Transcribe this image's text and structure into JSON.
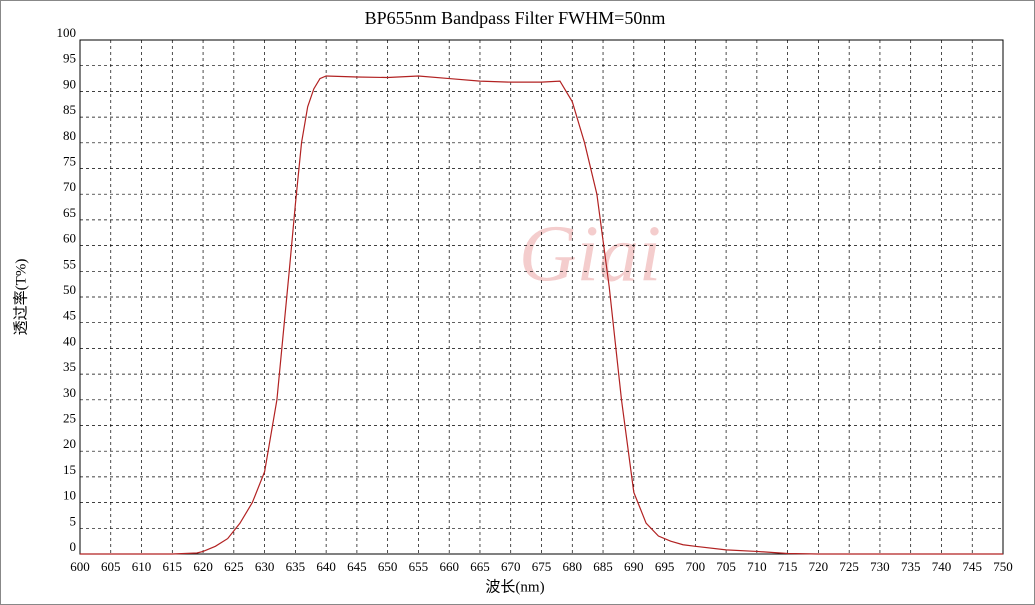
{
  "chart_data": {
    "type": "line",
    "title": "BP655nm Bandpass Filter FWHM=50nm",
    "x_label": "波长(nm)",
    "y_label": "透过率(T%)",
    "watermark": "Giai",
    "x": [
      600,
      615,
      619,
      620,
      622,
      624,
      626,
      628,
      630,
      632,
      634,
      635,
      636,
      637,
      638,
      639,
      640,
      645,
      650,
      655,
      660,
      665,
      670,
      675,
      678,
      680,
      682,
      684,
      686,
      688,
      690,
      692,
      694,
      696,
      698,
      700,
      705,
      710,
      715,
      720,
      750
    ],
    "series": [
      {
        "color": "#b22222",
        "values": [
          0,
          0,
          0.2,
          0.5,
          1.5,
          3,
          6,
          10,
          16,
          30,
          55,
          68,
          80,
          87,
          90.5,
          92.5,
          93,
          92.8,
          92.7,
          93,
          92.5,
          92,
          91.8,
          91.8,
          92,
          88,
          80,
          70,
          52,
          30,
          12,
          6,
          3.5,
          2.5,
          1.8,
          1.5,
          0.8,
          0.5,
          0.1,
          0,
          0
        ]
      }
    ],
    "xlim": [
      600,
      750
    ],
    "ylim": [
      0,
      100
    ],
    "xticks": [
      600,
      605,
      610,
      615,
      620,
      625,
      630,
      635,
      640,
      645,
      650,
      655,
      660,
      665,
      670,
      675,
      680,
      685,
      690,
      695,
      700,
      705,
      710,
      715,
      720,
      725,
      730,
      735,
      740,
      745,
      750
    ],
    "yticks": [
      0,
      5,
      10,
      15,
      20,
      25,
      30,
      35,
      40,
      45,
      50,
      55,
      60,
      65,
      70,
      75,
      80,
      85,
      90,
      95,
      100
    ],
    "grid": true
  }
}
